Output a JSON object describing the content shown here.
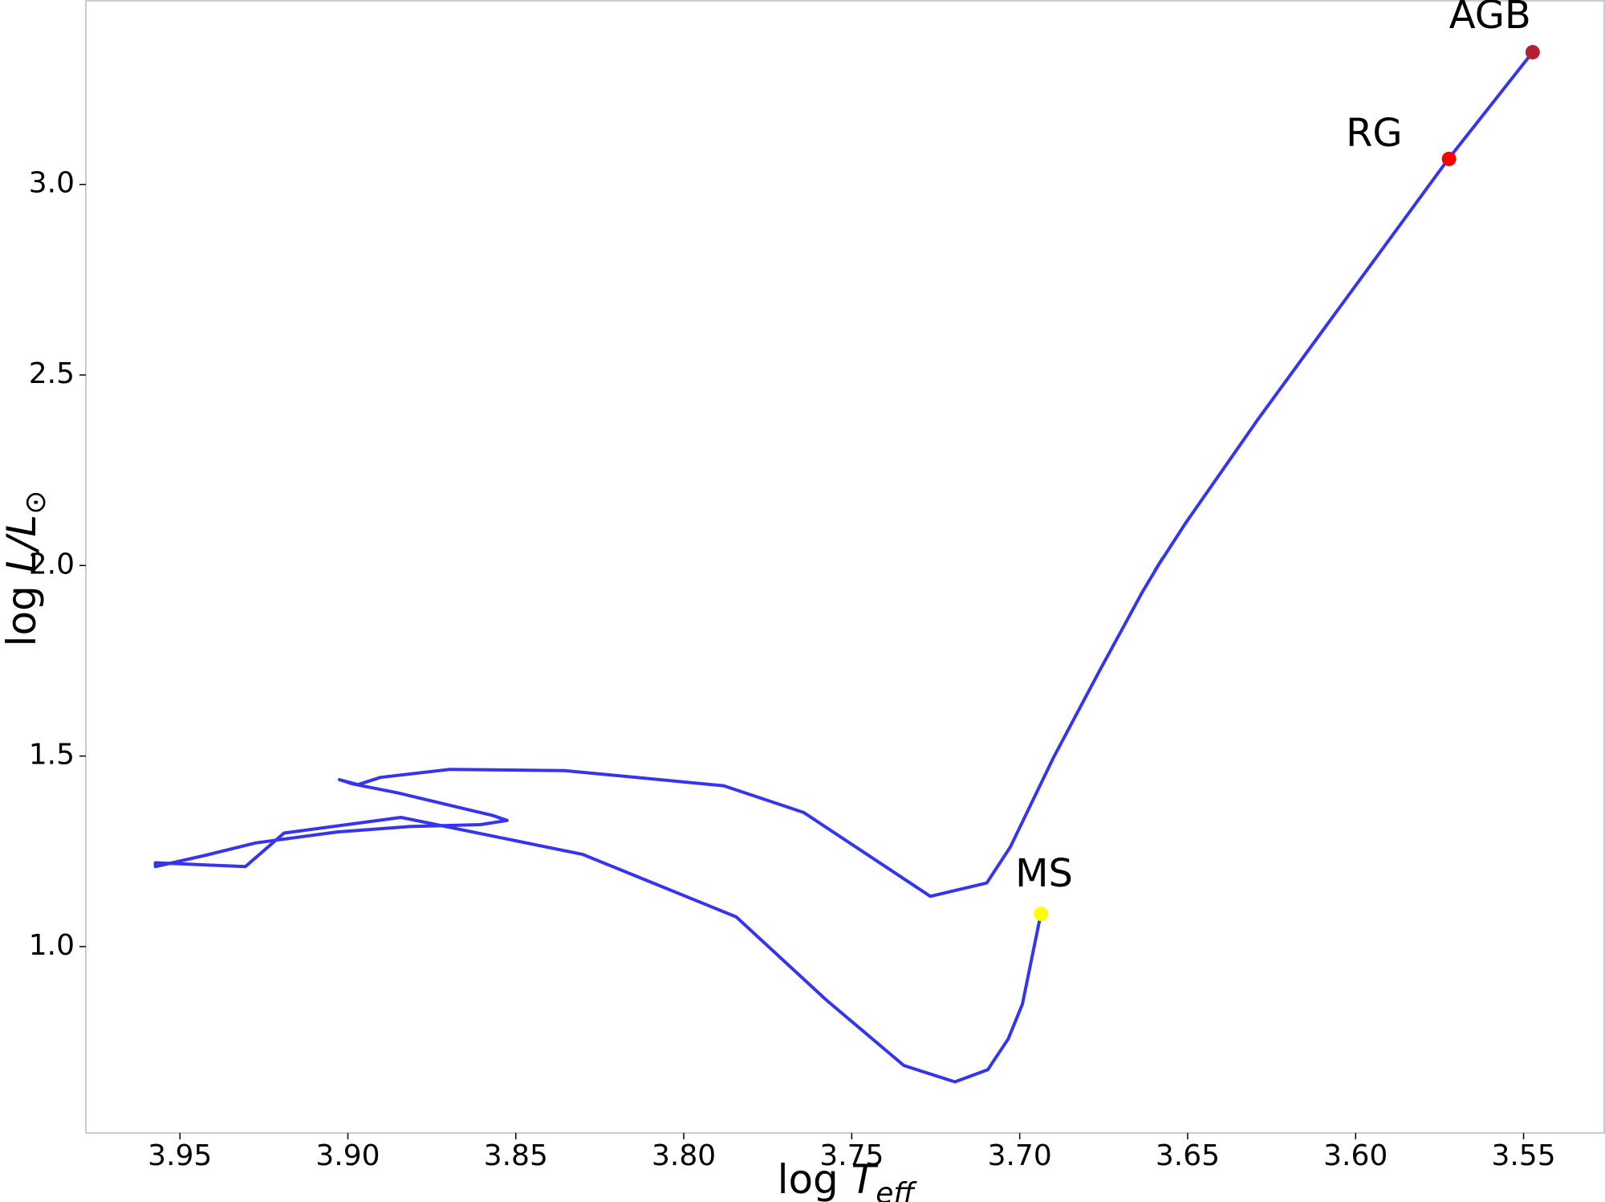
{
  "chart_data": {
    "type": "line",
    "xlabel": "log",
    "xlabel_symbol": "T",
    "xlabel_subscript": "eff",
    "ylabel": "log",
    "ylabel_symbol": "L/L",
    "ylabel_subscript": "⊙",
    "xlim": [
      3.978,
      3.526
    ],
    "ylim": [
      0.511,
      3.484
    ],
    "xticks": [
      3.95,
      {
        "value": 3.9,
        "label": "3.90"
      },
      3.85,
      {
        "value": 3.8,
        "label": "3.80"
      },
      3.75,
      {
        "value": 3.7,
        "label": "3.70"
      },
      3.65,
      {
        "value": 3.6,
        "label": "3.60"
      },
      3.55
    ],
    "yticks": [
      {
        "value": 1,
        "label": "1.0"
      },
      {
        "value": 1.5,
        "label": "1.5"
      },
      {
        "value": 2,
        "label": "2.0"
      },
      {
        "value": 2.5,
        "label": "2.5"
      },
      {
        "value": 3,
        "label": "3.0"
      }
    ],
    "x": [
      3.6937,
      3.6992,
      3.7034,
      3.7095,
      3.7193,
      3.7345,
      3.7576,
      3.7844,
      3.8301,
      3.8842,
      3.919,
      3.9305,
      3.9573,
      3.9573,
      3.9427,
      3.9275,
      3.9031,
      3.8818,
      3.8605,
      3.8526,
      3.8568,
      3.8849,
      3.8986,
      3.9025,
      3.897,
      3.8903,
      3.8696,
      3.8355,
      3.7881,
      3.7643,
      3.7266,
      3.7098,
      3.7028,
      3.69,
      3.6763,
      3.6635,
      3.6575,
      3.6596,
      3.6505,
      3.6292,
      3.6048,
      3.5728,
      3.5473
    ],
    "series": [
      {
        "color": "#3535ee",
        "values": [
          1.086,
          0.849,
          0.758,
          0.677,
          0.645,
          0.688,
          0.86,
          1.078,
          1.242,
          1.339,
          1.298,
          1.21,
          1.22,
          1.21,
          1.239,
          1.272,
          1.301,
          1.315,
          1.32,
          1.331,
          1.344,
          1.403,
          1.427,
          1.438,
          1.425,
          1.444,
          1.465,
          1.462,
          1.422,
          1.352,
          1.132,
          1.167,
          1.261,
          1.495,
          1.723,
          1.93,
          2.019,
          1.989,
          2.113,
          2.382,
          2.677,
          3.062,
          3.347
        ]
      }
    ],
    "markers": [
      {
        "label": "MS",
        "x": 3.6937,
        "y": 1.086,
        "color": "#ffff00"
      },
      {
        "label": "RG",
        "x": 3.5722,
        "y": 3.067,
        "color": "#ff0000"
      },
      {
        "label": "AGB",
        "x": 3.5473,
        "y": 3.347,
        "color": "#b22234"
      }
    ]
  }
}
